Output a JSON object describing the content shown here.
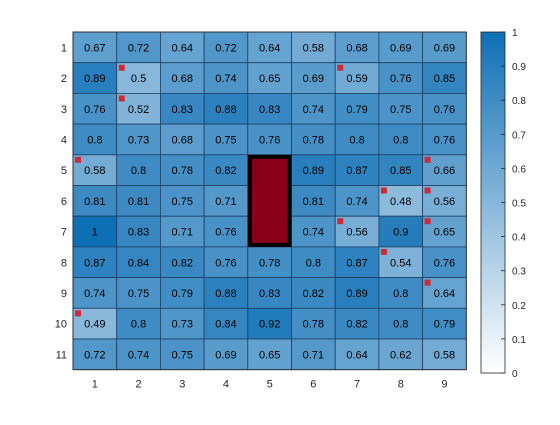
{
  "chart_data": {
    "type": "heatmap",
    "title": "",
    "xlabel": "",
    "ylabel": "",
    "x_categories": [
      "1",
      "2",
      "3",
      "4",
      "5",
      "6",
      "7",
      "8",
      "9"
    ],
    "y_categories": [
      "1",
      "2",
      "3",
      "4",
      "5",
      "6",
      "7",
      "8",
      "9",
      "10",
      "11"
    ],
    "values": [
      [
        0.67,
        0.72,
        0.64,
        0.72,
        0.64,
        0.58,
        0.68,
        0.69,
        0.69
      ],
      [
        0.89,
        0.5,
        0.68,
        0.74,
        0.65,
        0.69,
        0.59,
        0.76,
        0.85
      ],
      [
        0.76,
        0.52,
        0.83,
        0.88,
        0.83,
        0.74,
        0.79,
        0.75,
        0.76
      ],
      [
        0.8,
        0.73,
        0.68,
        0.75,
        0.76,
        0.78,
        0.8,
        0.8,
        0.76
      ],
      [
        0.58,
        0.8,
        0.78,
        0.82,
        null,
        0.89,
        0.87,
        0.85,
        0.66
      ],
      [
        0.81,
        0.81,
        0.75,
        0.71,
        null,
        0.81,
        0.74,
        0.48,
        0.56
      ],
      [
        1,
        0.83,
        0.71,
        0.76,
        null,
        0.74,
        0.56,
        0.9,
        0.65
      ],
      [
        0.87,
        0.84,
        0.82,
        0.76,
        0.78,
        0.8,
        0.87,
        0.54,
        0.76
      ],
      [
        0.74,
        0.75,
        0.79,
        0.88,
        0.83,
        0.82,
        0.89,
        0.8,
        0.64
      ],
      [
        0.49,
        0.8,
        0.73,
        0.84,
        0.92,
        0.78,
        0.82,
        0.8,
        0.79
      ],
      [
        0.72,
        0.74,
        0.75,
        0.69,
        0.65,
        0.71,
        0.64,
        0.62,
        0.58
      ]
    ],
    "masked_block": {
      "rows": [
        "5",
        "7"
      ],
      "columns": [
        "5",
        "5"
      ],
      "fill": "#8b0019",
      "border": "#000000"
    },
    "marked_cells": [
      {
        "row": "2",
        "col": "2"
      },
      {
        "row": "2",
        "col": "7"
      },
      {
        "row": "3",
        "col": "2"
      },
      {
        "row": "5",
        "col": "1"
      },
      {
        "row": "5",
        "col": "9"
      },
      {
        "row": "6",
        "col": "8"
      },
      {
        "row": "6",
        "col": "9"
      },
      {
        "row": "7",
        "col": "7"
      },
      {
        "row": "7",
        "col": "9"
      },
      {
        "row": "8",
        "col": "8"
      },
      {
        "row": "9",
        "col": "9"
      },
      {
        "row": "10",
        "col": "1"
      }
    ],
    "marker_color": "#cc2a36",
    "colorbar": {
      "range": [
        0,
        1
      ],
      "ticks": [
        "0",
        "0.1",
        "0.2",
        "0.3",
        "0.4",
        "0.5",
        "0.6",
        "0.7",
        "0.8",
        "0.9",
        "1"
      ],
      "low_color": "#ffffff",
      "high_color": "#0f6fb5"
    },
    "grid": true,
    "cell_border_color": "#1c3f63"
  }
}
